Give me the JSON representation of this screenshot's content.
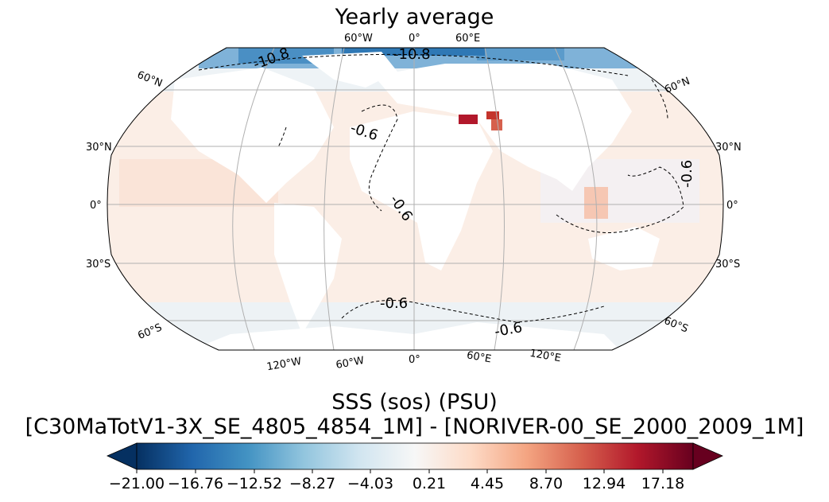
{
  "title": "Yearly average",
  "caption_line1": "SSS (sos) (PSU)",
  "caption_line2": "[C30MaTotV1-3X_SE_4805_4854_1M] - [NORIVER-00_SE_2000_2009_1M]",
  "map": {
    "projection": "Robinson",
    "lat_labels_left": [
      "60°N",
      "30°N",
      "0°",
      "30°S",
      "60°S"
    ],
    "lat_labels_right": [
      "60°N",
      "30°N",
      "0°",
      "30°S",
      "60°S"
    ],
    "lon_labels_top": [
      "60°W",
      "0°",
      "60°E"
    ],
    "lon_labels_bottom": [
      "120°W",
      "60°W",
      "0°",
      "60°E",
      "120°E"
    ],
    "contour_labels": [
      "-10.8",
      "-10.8",
      "-0.6",
      "-0.6",
      "-0.6",
      "-0.6",
      "-0.6"
    ]
  },
  "colorbar": {
    "colormap": "RdBu_r",
    "extend": "both",
    "ticks": [
      "−21.00",
      "−16.76",
      "−12.52",
      "−8.27",
      "−4.03",
      "0.21",
      "4.45",
      "8.70",
      "12.94",
      "17.18"
    ],
    "colors": [
      "#053061",
      "#2166ac",
      "#4393c3",
      "#92c5de",
      "#d1e5f0",
      "#f7f7f7",
      "#fddbc7",
      "#f4a582",
      "#d6604d",
      "#b2182b",
      "#67001f"
    ]
  }
}
